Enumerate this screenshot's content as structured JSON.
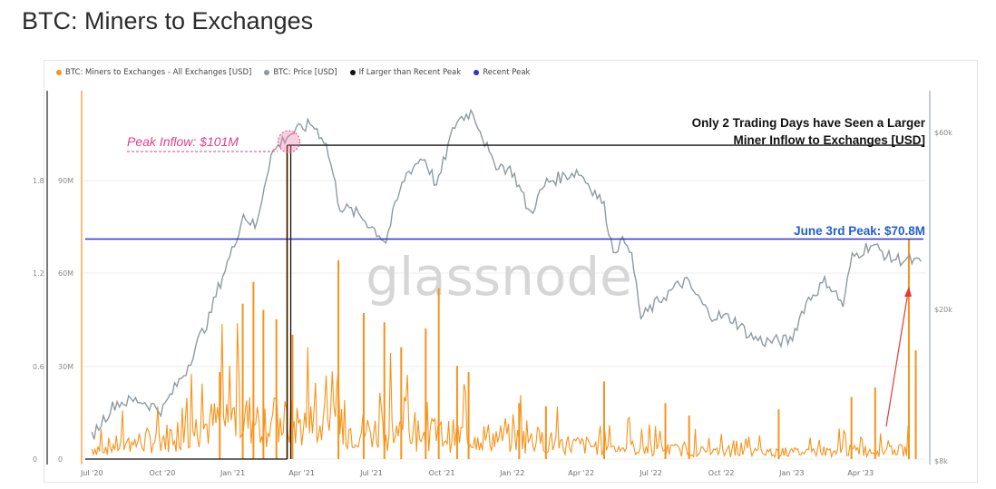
{
  "page_title": "BTC: Miners to Exchanges",
  "watermark": "glassnode",
  "colors": {
    "inflow": "#f7931a",
    "price": "#8e9aa0",
    "larger_than_peak": "#111111",
    "recent_peak": "#2f2fd0",
    "peak_annotation": "#e0408a",
    "june_annotation": "#1f5fd6",
    "arrow": "#e53935"
  },
  "legend": [
    {
      "label": "BTC: Miners to Exchanges - All Exchanges [USD]",
      "color": "#f7931a"
    },
    {
      "label": "BTC: Price [USD]",
      "color": "#8e9aa0"
    },
    {
      "label": "If Larger than Recent Peak",
      "color": "#111111"
    },
    {
      "label": "Recent Peak",
      "color": "#2f2fd0"
    }
  ],
  "annotations": {
    "peak_inflow": "Peak Inflow: $101M",
    "trading_days_line1": "Only 2 Trading Days have Seen a Larger",
    "trading_days_line2": "Miner Inflow to Exchanges [USD]",
    "june_peak": "June 3rd Peak: $70.8M"
  },
  "chart_data": {
    "type": "line",
    "x_ticks": [
      "Jul '20",
      "Oct '20",
      "Jan '21",
      "Apr '21",
      "Jul '21",
      "Oct '21",
      "Jan '22",
      "Apr '22",
      "Jul '22",
      "Oct '22",
      "Jan '23",
      "Apr '23"
    ],
    "y_left_outer_ticks": [
      "0",
      "0.6",
      "1.2",
      "1.8"
    ],
    "y_left_inner_ticks": [
      "0",
      "30M",
      "60M",
      "90M"
    ],
    "y_right_ticks": [
      "$8k",
      "$20k",
      "$60k"
    ],
    "inflow_ylim": [
      0,
      120000000
    ],
    "recent_peak_value": 70800000,
    "peak_inflow_value": 101000000,
    "series": [
      {
        "name": "BTC: Price [USD]",
        "x": [
          "2020-07-01",
          "2020-08-01",
          "2020-09-01",
          "2020-10-01",
          "2020-11-01",
          "2020-12-01",
          "2021-01-01",
          "2021-01-15",
          "2021-02-01",
          "2021-02-20",
          "2021-03-13",
          "2021-04-14",
          "2021-05-01",
          "2021-05-20",
          "2021-06-15",
          "2021-07-20",
          "2021-08-15",
          "2021-09-07",
          "2021-09-25",
          "2021-10-20",
          "2021-11-10",
          "2021-12-05",
          "2022-01-01",
          "2022-01-24",
          "2022-02-15",
          "2022-03-28",
          "2022-04-30",
          "2022-05-12",
          "2022-06-01",
          "2022-06-18",
          "2022-07-15",
          "2022-08-15",
          "2022-09-15",
          "2022-10-15",
          "2022-11-09",
          "2022-11-25",
          "2022-12-31",
          "2023-01-20",
          "2023-02-15",
          "2023-03-10",
          "2023-03-20",
          "2023-04-14",
          "2023-05-10",
          "2023-06-03",
          "2023-06-20"
        ],
        "values": [
          9200,
          11300,
          11500,
          10800,
          13800,
          19000,
          29000,
          36000,
          33000,
          52000,
          58500,
          63000,
          57000,
          38000,
          36000,
          30500,
          46000,
          51500,
          42500,
          64000,
          68000,
          50000,
          47000,
          36000,
          44000,
          47000,
          38500,
          29000,
          31000,
          19000,
          21500,
          24000,
          19500,
          19000,
          17000,
          16500,
          16600,
          21000,
          24000,
          20500,
          27500,
          30000,
          27500,
          27200,
          26500
        ]
      },
      {
        "name": "BTC: Miners to Exchanges - All Exchanges [USD]",
        "x": [
          "2020-07-01",
          "2020-10-01",
          "2021-01-01",
          "2021-04-01",
          "2021-07-01",
          "2021-10-01",
          "2022-01-01",
          "2022-04-01",
          "2022-07-01",
          "2022-10-01",
          "2023-01-01",
          "2023-04-01",
          "2023-06-03"
        ],
        "values": [
          3000000,
          6000000,
          12000000,
          10000000,
          8000000,
          7000000,
          6000000,
          4000000,
          3000000,
          2000000,
          2000000,
          2500000,
          70800000
        ]
      }
    ],
    "spikes": [
      {
        "x": "2020-12-15",
        "value": 28000000
      },
      {
        "x": "2021-01-14",
        "value": 50000000
      },
      {
        "x": "2021-01-28",
        "value": 57000000
      },
      {
        "x": "2021-02-10",
        "value": 48000000
      },
      {
        "x": "2021-02-27",
        "value": 45000000
      },
      {
        "x": "2021-03-13",
        "value": 101000000
      },
      {
        "x": "2021-03-20",
        "value": 40000000
      },
      {
        "x": "2021-05-19",
        "value": 64000000
      },
      {
        "x": "2021-06-21",
        "value": 47000000
      },
      {
        "x": "2021-07-18",
        "value": 44000000
      },
      {
        "x": "2021-08-09",
        "value": 36000000
      },
      {
        "x": "2021-09-10",
        "value": 42000000
      },
      {
        "x": "2021-09-27",
        "value": 55000000
      },
      {
        "x": "2021-10-21",
        "value": 30000000
      },
      {
        "x": "2021-11-05",
        "value": 28000000
      },
      {
        "x": "2022-01-10",
        "value": 18000000
      },
      {
        "x": "2022-02-14",
        "value": 17000000
      },
      {
        "x": "2022-05-01",
        "value": 25000000
      },
      {
        "x": "2022-07-20",
        "value": 18000000
      },
      {
        "x": "2022-08-20",
        "value": 14000000
      },
      {
        "x": "2022-12-15",
        "value": 16000000
      },
      {
        "x": "2023-03-20",
        "value": 20000000
      },
      {
        "x": "2023-04-20",
        "value": 23000000
      },
      {
        "x": "2023-06-03",
        "value": 70800000
      },
      {
        "x": "2023-06-12",
        "value": 35000000
      }
    ]
  }
}
